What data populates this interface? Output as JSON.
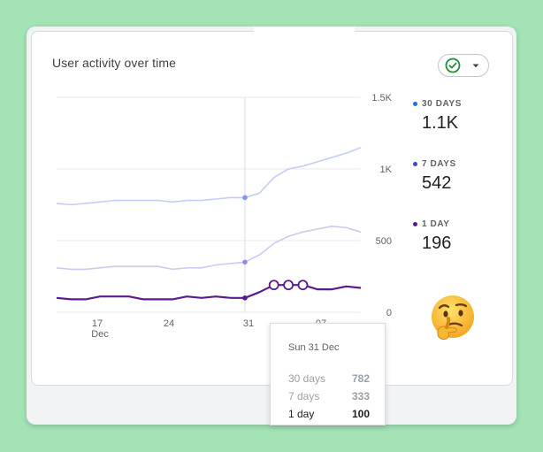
{
  "card": {
    "title": "User activity over time",
    "status_icon": "check-circle-icon",
    "dropdown_icon": "caret-down-icon"
  },
  "chart_data": {
    "type": "line",
    "title": "User activity over time",
    "x_tick_labels": [
      "17",
      "24",
      "31",
      "07"
    ],
    "x_tick_sublabel": "Dec",
    "y_tick_labels": [
      "1.5K",
      "1K",
      "500",
      "0"
    ],
    "ylim": [
      0,
      1500
    ],
    "grid": true,
    "series": [
      {
        "name": "30 DAYS",
        "color": "#c5cdf7",
        "values": [
          760,
          750,
          760,
          770,
          780,
          780,
          780,
          780,
          770,
          780,
          780,
          790,
          800,
          800,
          830,
          940,
          1000,
          1020,
          1050,
          1080,
          1110,
          1150
        ]
      },
      {
        "name": "7 DAYS",
        "color": "#cfc9f1",
        "values": [
          310,
          300,
          300,
          310,
          320,
          320,
          320,
          320,
          300,
          310,
          310,
          330,
          340,
          350,
          400,
          480,
          530,
          560,
          580,
          600,
          590,
          560
        ]
      },
      {
        "name": "1 DAY",
        "color": "#5b1a8f",
        "values": [
          100,
          90,
          90,
          110,
          110,
          110,
          90,
          90,
          90,
          110,
          100,
          110,
          100,
          100,
          140,
          190,
          190,
          190,
          160,
          160,
          180,
          170
        ]
      }
    ],
    "highlight_index": 13
  },
  "metrics": [
    {
      "label": "30 DAYS",
      "value": "1.1K",
      "color": "#1a73e8"
    },
    {
      "label": "7 DAYS",
      "value": "542",
      "color": "#3949d6"
    },
    {
      "label": "1 DAY",
      "value": "196",
      "color": "#5b1a8f"
    }
  ],
  "emoji": "thinking-face",
  "tooltip": {
    "date": "Sun 31 Dec",
    "rows": [
      {
        "label": "30 days",
        "value": "782"
      },
      {
        "label": "7 days",
        "value": "333"
      },
      {
        "label": "1 day",
        "value": "100"
      }
    ]
  }
}
